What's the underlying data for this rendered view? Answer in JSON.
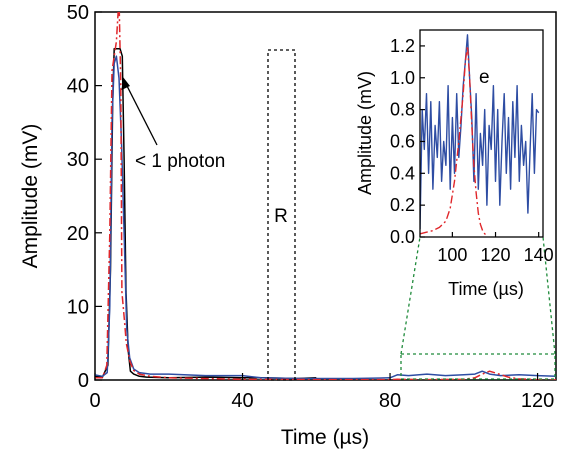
{
  "chart_data": [
    {
      "type": "line",
      "xlabel": "Time (µs)",
      "ylabel": "Amplitude (mV)",
      "xlim": [
        0,
        125
      ],
      "ylim": [
        0,
        50
      ],
      "xticks": [
        "0",
        "40",
        "80",
        "120"
      ],
      "yticks": [
        "0",
        "10",
        "20",
        "30",
        "40",
        "50"
      ],
      "grid": false,
      "series": [
        {
          "color": "#000000",
          "style": "solid",
          "x": [
            0,
            2,
            3.5,
            4.2,
            4.8,
            5.2,
            6,
            6.8,
            7.4,
            7.9,
            8.4,
            9,
            9.6,
            10.5,
            12,
            14,
            20,
            30,
            40,
            45,
            55,
            60
          ],
          "y": [
            0.5,
            0.4,
            2,
            15,
            38,
            45,
            45,
            45,
            44,
            30,
            12,
            4,
            1.2,
            0.8,
            0.5,
            0.4,
            0.3,
            0.4,
            0.3,
            0.3,
            0.2,
            0.3
          ]
        },
        {
          "color": "#2e4da3",
          "style": "solid",
          "x": [
            0,
            2,
            3.3,
            4,
            4.6,
            5.2,
            5.8,
            6.5,
            7.2,
            8,
            8.6,
            9.4,
            10.5,
            12,
            15,
            20,
            30,
            40,
            45,
            55,
            60,
            70,
            80,
            82,
            85,
            90,
            95,
            100,
            103,
            105,
            107,
            110,
            115,
            120,
            125
          ],
          "y": [
            0.7,
            0.5,
            1,
            10,
            35,
            43,
            44,
            41,
            32,
            18,
            7,
            3,
            1.5,
            1,
            0.8,
            0.8,
            0.6,
            0.6,
            0.3,
            0.2,
            0.2,
            0.2,
            0.3,
            0.7,
            0.6,
            0.8,
            0.6,
            0.7,
            0.8,
            1.2,
            0.8,
            0.6,
            0.7,
            0.6,
            0.5
          ]
        },
        {
          "color": "#e0262a",
          "style": "dashdot",
          "x": [
            0,
            2,
            3.2,
            4,
            4.6,
            5.2,
            5.8,
            6.5,
            7,
            7.3,
            8,
            8.5,
            9.5,
            10.5,
            12,
            15,
            20,
            40,
            60,
            80,
            82,
            90,
            100,
            103,
            105,
            107,
            109,
            112,
            115,
            120,
            125
          ],
          "y": [
            0.3,
            0.3,
            2,
            20,
            42,
            44,
            46,
            52,
            40,
            12,
            8,
            5,
            2.5,
            1.3,
            0.8,
            0.5,
            0.3,
            0.1,
            0.05,
            0.05,
            0.1,
            0.05,
            0.1,
            0.3,
            0.8,
            1.2,
            0.9,
            0.4,
            0.15,
            0.05,
            0.02
          ]
        }
      ],
      "annotations": {
        "photon_label": "< 1 photon",
        "region_r_label": "R"
      }
    },
    {
      "type": "line",
      "xlabel": "Time (µs)",
      "ylabel": "Amplitude (mV)",
      "xlim": [
        85,
        142
      ],
      "ylim": [
        0,
        1.3
      ],
      "xticks": [
        "100",
        "120",
        "140"
      ],
      "yticks": [
        "0.0",
        "0.2",
        "0.4",
        "0.6",
        "0.8",
        "1.0",
        "1.2"
      ],
      "panel_label": "e",
      "series": [
        {
          "color": "#2e4da3",
          "style": "solid",
          "x": [
            85,
            86,
            87,
            88,
            89,
            90,
            91,
            92,
            93,
            94,
            95,
            96,
            97,
            98,
            99,
            100,
            101,
            102,
            103,
            104,
            105,
            106,
            107,
            108,
            109,
            110,
            111,
            112,
            113,
            114,
            115,
            116,
            117,
            118,
            119,
            120,
            121,
            122,
            123,
            124,
            125,
            126,
            127,
            128,
            129,
            130,
            131,
            132,
            133,
            134,
            135,
            136,
            137,
            138,
            139,
            140
          ],
          "y": [
            0.05,
            0.8,
            0.55,
            0.9,
            0.4,
            0.85,
            0.3,
            0.7,
            0.5,
            0.85,
            0.35,
            0.6,
            0.45,
            0.95,
            0.3,
            0.75,
            0.4,
            0.9,
            0.5,
            0.7,
            0.95,
            1.1,
            1.27,
            1.0,
            0.75,
            0.35,
            0.9,
            0.3,
            0.65,
            0.45,
            0.8,
            0.2,
            0.7,
            0.55,
            0.95,
            0.35,
            0.8,
            0.2,
            0.6,
            0.9,
            0.4,
            0.75,
            0.3,
            0.85,
            0.5,
            0.95,
            0.35,
            0.7,
            0.45,
            0.6,
            0.15,
            0.55,
            0.9,
            0.4,
            0.8,
            0.78
          ]
        },
        {
          "color": "#e0262a",
          "style": "dashdot",
          "x": [
            85,
            88,
            91,
            94,
            97,
            99,
            101,
            103,
            105,
            106,
            107,
            108,
            109,
            110,
            111,
            112,
            113,
            114,
            115,
            116
          ],
          "y": [
            0.02,
            0.03,
            0.04,
            0.06,
            0.1,
            0.18,
            0.35,
            0.6,
            0.9,
            1.1,
            1.2,
            1.0,
            0.7,
            0.45,
            0.28,
            0.15,
            0.08,
            0.04,
            0.02,
            0.01
          ]
        }
      ]
    }
  ]
}
